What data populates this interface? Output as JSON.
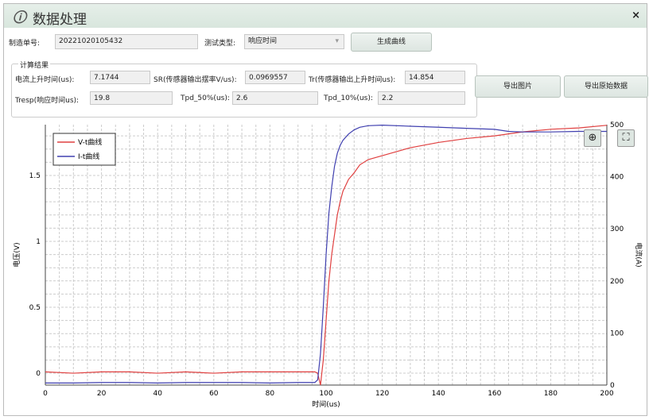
{
  "window": {
    "title": "数据处理",
    "close": "×"
  },
  "form": {
    "order_label": "制造单号:",
    "order_value": "20221020105432",
    "type_label": "测试类型:",
    "type_value": "响应时间",
    "generate_button": "生成曲线"
  },
  "results": {
    "group_title": "计算结果",
    "fields": [
      {
        "label": "电流上升时间(us):",
        "value": "7.1744"
      },
      {
        "label": "SR(传感器输出摆率V/us):",
        "value": "0.0969557"
      },
      {
        "label": "Tr(传感器输出上升时间us):",
        "value": "14.854"
      },
      {
        "label": "Tresp(响应时间us):",
        "value": "19.8"
      },
      {
        "label": "Tpd_50%(us):",
        "value": "2.6"
      },
      {
        "label": "Tpd_10%(us):",
        "value": "2.2"
      }
    ],
    "export_image_button": "导出图片",
    "export_raw_button": "导出原始数据"
  },
  "chart_data": {
    "type": "line",
    "xlabel": "时间(us)",
    "ylabel": "电压(V)",
    "y2label": "电流(A)",
    "xlim": [
      0,
      200
    ],
    "ylim": [
      -0.09,
      1.885
    ],
    "y2lim": [
      0,
      500
    ],
    "xticks": [
      0,
      20,
      40,
      60,
      80,
      100,
      120,
      140,
      160,
      180,
      200
    ],
    "yticks": [
      0,
      0.5,
      1,
      1.5
    ],
    "y2ticks": [
      0,
      100,
      200,
      300,
      400,
      500
    ],
    "grid": true,
    "legend": "top-left",
    "series": [
      {
        "name": "V-t曲线",
        "axis": "left",
        "color": "#e04040",
        "x": [
          0,
          10,
          20,
          30,
          40,
          50,
          60,
          70,
          80,
          90,
          96,
          97,
          98,
          99,
          100,
          101,
          102,
          103,
          104,
          105,
          106,
          108,
          110,
          112,
          115,
          120,
          125,
          130,
          140,
          150,
          160,
          170,
          180,
          190,
          200
        ],
        "y": [
          0.01,
          0,
          0.01,
          0.01,
          0,
          0.01,
          0,
          0.01,
          0.01,
          0.01,
          0.01,
          0,
          -0.09,
          0.1,
          0.4,
          0.7,
          0.9,
          1.05,
          1.2,
          1.3,
          1.38,
          1.47,
          1.52,
          1.58,
          1.62,
          1.65,
          1.68,
          1.71,
          1.75,
          1.78,
          1.8,
          1.83,
          1.85,
          1.86,
          1.88
        ]
      },
      {
        "name": "I-t曲线",
        "axis": "right",
        "color": "#4040b0",
        "x": [
          0,
          10,
          20,
          30,
          40,
          50,
          60,
          70,
          80,
          90,
          96,
          97,
          98,
          99,
          100,
          101,
          102,
          103,
          104,
          105,
          106,
          108,
          110,
          112,
          115,
          120,
          130,
          140,
          150,
          160,
          165,
          170,
          180,
          190,
          200
        ],
        "y": [
          4,
          4,
          5,
          5,
          4,
          5,
          5,
          5,
          4,
          5,
          5,
          10,
          60,
          150,
          250,
          330,
          380,
          420,
          445,
          460,
          470,
          482,
          490,
          495,
          498,
          499,
          497,
          495,
          493,
          491,
          487,
          486,
          486,
          487,
          487
        ]
      }
    ]
  },
  "chart_controls": {
    "zoom_icon": "zoom-in-icon",
    "fit_icon": "fullscreen-icon"
  }
}
